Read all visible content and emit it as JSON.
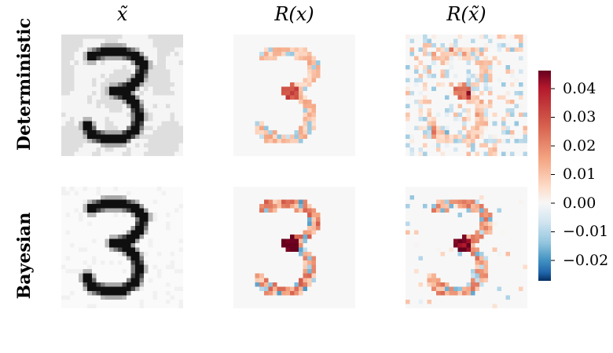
{
  "columns": [
    "x̃",
    "R(x)",
    "R(x̃)"
  ],
  "rows": [
    "Deterministic",
    "Bayesian"
  ],
  "colorbar": {
    "colormap": "RdBu_r",
    "ticks": [
      "0.04",
      "0.03",
      "0.02",
      "0.01",
      "0.00",
      "−0.01",
      "−0.02"
    ],
    "range": [
      -0.027,
      0.046
    ],
    "colors": {
      "max": "#67001f",
      "mid": "#f7f7f7",
      "min": "#053061"
    }
  },
  "panels": [
    {
      "row": "Deterministic",
      "column": "x̃",
      "content": "digit 3 with grey noise patches"
    },
    {
      "row": "Deterministic",
      "column": "R(x)",
      "content": "relevance heatmap"
    },
    {
      "row": "Deterministic",
      "column": "R(x̃)",
      "content": "relevance heatmap, noisy"
    },
    {
      "row": "Bayesian",
      "column": "x̃",
      "content": "digit 3, clean"
    },
    {
      "row": "Bayesian",
      "column": "R(x)",
      "content": "relevance heatmap"
    },
    {
      "row": "Bayesian",
      "column": "R(x̃)",
      "content": "relevance heatmap"
    }
  ]
}
